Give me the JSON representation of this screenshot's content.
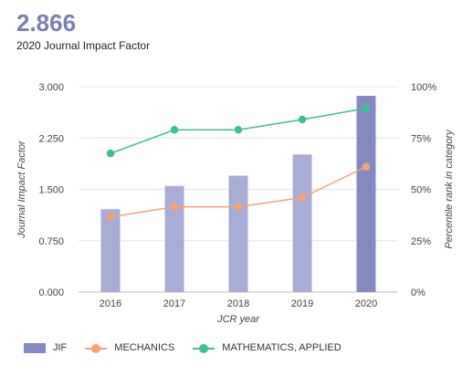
{
  "header": {
    "value": "2.866",
    "label": "2020 Journal Impact Factor"
  },
  "chart_data": {
    "type": "bar",
    "categories": [
      "2016",
      "2017",
      "2018",
      "2019",
      "2020"
    ],
    "xlabel": "JCR year",
    "ylabel": "Journal Impact Factor",
    "y2label": "Percentile rank in category",
    "ylim": [
      0,
      3.0
    ],
    "y2lim": [
      0,
      100
    ],
    "yticks": [
      "0.000",
      "0.750",
      "1.500",
      "2.250",
      "3.000"
    ],
    "y2ticks": [
      "0%",
      "25%",
      "50%",
      "75%",
      "100%"
    ],
    "grid": true,
    "legend_position": "bottom",
    "series": [
      {
        "name": "JIF",
        "kind": "bar",
        "axis": "left",
        "values": [
          1.21,
          1.55,
          1.7,
          2.01,
          2.866
        ],
        "color": "#a9acd6",
        "highlight_color": "#8589c2"
      },
      {
        "name": "MECHANICS",
        "kind": "line",
        "axis": "right",
        "values": [
          36.5,
          41.5,
          41.5,
          46,
          61
        ],
        "color": "#f4a275"
      },
      {
        "name": "MATHEMATICS, APPLIED",
        "kind": "line",
        "axis": "right",
        "values": [
          67.5,
          79,
          79,
          84,
          89.5
        ],
        "color": "#3cc18b"
      }
    ]
  }
}
